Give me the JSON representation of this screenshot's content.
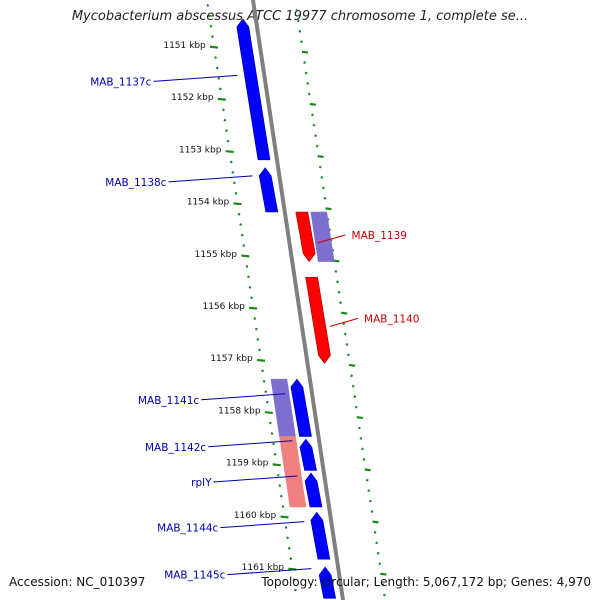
{
  "title": "Mycobacterium abscessus ATCC 19977 chromosome 1, complete se...",
  "footer": {
    "accession": "Accession: NC_010397",
    "info": "Topology: circular; Length: 5,067,172 bp; Genes: 4,970"
  },
  "colors": {
    "background": "#ffffff",
    "backbone": "#808080",
    "tick_green": "#1a8a1a",
    "reverse_gene": "#0000ff",
    "forward_gene": "#ff0000",
    "reverse_label": "#0000aa",
    "forward_label": "#cc0000",
    "reverse_homolog": "#7d6fd0",
    "forward_homolog": "#f08080",
    "label_text": "#111111"
  },
  "kbp_ticks": [
    {
      "label": "1151 kbp",
      "pos_kbp": 1151
    },
    {
      "label": "1152 kbp",
      "pos_kbp": 1152
    },
    {
      "label": "1153 kbp",
      "pos_kbp": 1153
    },
    {
      "label": "1154 kbp",
      "pos_kbp": 1154
    },
    {
      "label": "1155 kbp",
      "pos_kbp": 1155
    },
    {
      "label": "1156 kbp",
      "pos_kbp": 1156
    },
    {
      "label": "1157 kbp",
      "pos_kbp": 1157
    },
    {
      "label": "1158 kbp",
      "pos_kbp": 1158
    },
    {
      "label": "1159 kbp",
      "pos_kbp": 1159
    },
    {
      "label": "1160 kbp",
      "pos_kbp": 1160
    },
    {
      "label": "1161 kbp",
      "pos_kbp": 1161
    }
  ],
  "genes": [
    {
      "name": "MAB_1137c",
      "strand": "-",
      "start_kbp": 1150.5,
      "end_kbp": 1153.2
    },
    {
      "name": "MAB_1138c",
      "strand": "-",
      "start_kbp": 1153.35,
      "end_kbp": 1154.2
    },
    {
      "name": "MAB_1139",
      "strand": "+",
      "start_kbp": 1154.2,
      "end_kbp": 1155.15
    },
    {
      "name": "MAB_1140",
      "strand": "+",
      "start_kbp": 1155.45,
      "end_kbp": 1157.1
    },
    {
      "name": "MAB_1141c",
      "strand": "-",
      "start_kbp": 1157.4,
      "end_kbp": 1158.5
    },
    {
      "name": "MAB_1142c",
      "strand": "-",
      "start_kbp": 1158.55,
      "end_kbp": 1159.15
    },
    {
      "name": "rplY",
      "strand": "-",
      "start_kbp": 1159.2,
      "end_kbp": 1159.85
    },
    {
      "name": "MAB_1144c",
      "strand": "-",
      "start_kbp": 1159.95,
      "end_kbp": 1160.85
    },
    {
      "name": "MAB_1145c",
      "strand": "-",
      "start_kbp": 1161.0,
      "end_kbp": 1161.6
    }
  ],
  "homolog_blocks": [
    {
      "strand": "+",
      "start_kbp": 1154.2,
      "end_kbp": 1155.15,
      "tone": "reverse_homolog"
    },
    {
      "strand": "-",
      "start_kbp": 1157.4,
      "end_kbp": 1158.5,
      "tone": "reverse_homolog"
    },
    {
      "strand": "-",
      "start_kbp": 1158.5,
      "end_kbp": 1159.85,
      "tone": "forward_homolog"
    }
  ]
}
